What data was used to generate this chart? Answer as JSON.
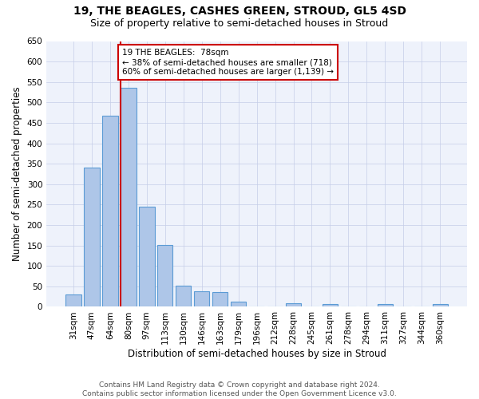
{
  "title": "19, THE BEAGLES, CASHES GREEN, STROUD, GL5 4SD",
  "subtitle": "Size of property relative to semi-detached houses in Stroud",
  "xlabel": "Distribution of semi-detached houses by size in Stroud",
  "ylabel": "Number of semi-detached properties",
  "categories": [
    "31sqm",
    "47sqm",
    "64sqm",
    "80sqm",
    "97sqm",
    "113sqm",
    "130sqm",
    "146sqm",
    "163sqm",
    "179sqm",
    "196sqm",
    "212sqm",
    "228sqm",
    "245sqm",
    "261sqm",
    "278sqm",
    "294sqm",
    "311sqm",
    "327sqm",
    "344sqm",
    "360sqm"
  ],
  "values": [
    30,
    340,
    468,
    535,
    245,
    151,
    51,
    38,
    36,
    13,
    0,
    0,
    8,
    0,
    6,
    0,
    0,
    6,
    0,
    0,
    6
  ],
  "bar_color": "#aec6e8",
  "bar_edge_color": "#5b9bd5",
  "property_bin_index": 3,
  "annotation_line1": "19 THE BEAGLES:  78sqm",
  "annotation_line2": "← 38% of semi-detached houses are smaller (718)",
  "annotation_line3": "60% of semi-detached houses are larger (1,139) →",
  "vline_color": "#cc0000",
  "ylim": [
    0,
    650
  ],
  "yticks": [
    0,
    50,
    100,
    150,
    200,
    250,
    300,
    350,
    400,
    450,
    500,
    550,
    600,
    650
  ],
  "footer_line1": "Contains HM Land Registry data © Crown copyright and database right 2024.",
  "footer_line2": "Contains public sector information licensed under the Open Government Licence v3.0.",
  "background_color": "#eef2fb",
  "grid_color": "#c5cde8",
  "title_fontsize": 10,
  "subtitle_fontsize": 9,
  "xlabel_fontsize": 8.5,
  "ylabel_fontsize": 8.5,
  "tick_fontsize": 7.5,
  "footer_fontsize": 6.5,
  "annotation_fontsize": 7.5
}
